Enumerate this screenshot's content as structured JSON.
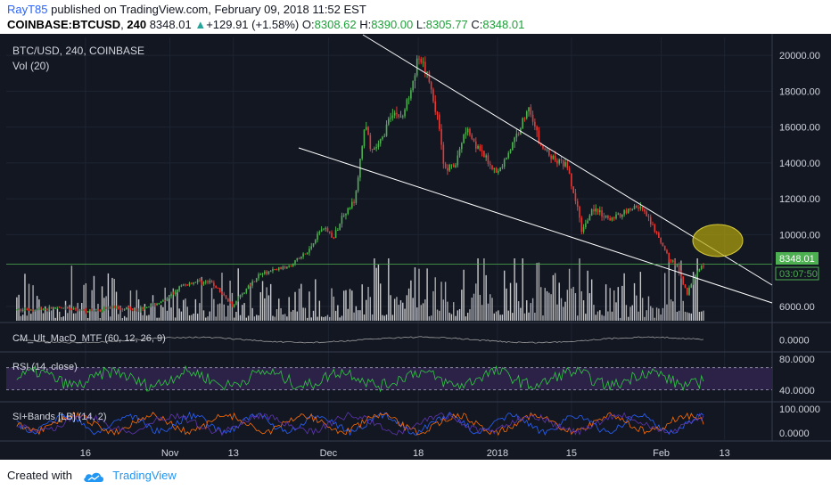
{
  "header": {
    "author": "RayT85",
    "published_text": "published on TradingView.com, February 09, 2018 11:52 EST",
    "symbol": "COINBASE:BTCUSD",
    "interval": "240",
    "last": "8348.01",
    "change": "+129.91 (+1.58%)",
    "o_label": "O:",
    "o_value": "8308.62",
    "h_label": "H:",
    "h_value": "8390.00",
    "l_label": "L:",
    "l_value": "8305.77",
    "c_label": "C:",
    "c_value": "8348.01"
  },
  "legend": {
    "main_title": "BTC/USD, 240, COINBASE",
    "vol_label": "Vol (20)",
    "macd_label": "CM_Ult_MacD_MTF (60, 12, 26, 9)",
    "rsi_label": "RSI (14, close)",
    "si_label": "SI+Bands [LB] (14, 2)"
  },
  "price_badges": {
    "last_price": "8348.01",
    "countdown": "03:07:50"
  },
  "footer": {
    "created_with": "Created with",
    "brand": "TradingView",
    "icon": "tradingview-cloud-icon"
  },
  "colors": {
    "background": "#131722",
    "up": "#26a69a",
    "down": "#ef5350",
    "candle_up": "#4caf50",
    "candle_down": "#e53935",
    "trendline": "#ffffff",
    "rsi_band": "#2c2247",
    "ellipse": "#b5a80b",
    "last_price": "#4caf50"
  },
  "chart_data": {
    "type": "candlestick",
    "title": "BTC/USD, 240, COINBASE",
    "price_axis": {
      "ticks": [
        "20000.00",
        "18000.00",
        "16000.00",
        "14000.00",
        "12000.00",
        "10000.00",
        "6000.00"
      ],
      "range": [
        5200,
        21000
      ]
    },
    "time_axis": {
      "ticks": [
        "16",
        "Nov",
        "13",
        "Dec",
        "18",
        "2018",
        "15",
        "Feb",
        "13"
      ]
    },
    "price_path": [
      [
        "Oct 2",
        5800
      ],
      [
        "Oct 10",
        5900
      ],
      [
        "Oct 16",
        5750
      ],
      [
        "Oct 20",
        5950
      ],
      [
        "Oct 25",
        5850
      ],
      [
        "Oct 30",
        6300
      ],
      [
        "Nov 2",
        7100
      ],
      [
        "Nov 5",
        7400
      ],
      [
        "Nov 8",
        7300
      ],
      [
        "Nov 12",
        6000
      ],
      [
        "Nov 13",
        6500
      ],
      [
        "Nov 17",
        7800
      ],
      [
        "Nov 22",
        8200
      ],
      [
        "Nov 26",
        9000
      ],
      [
        "Nov 29",
        10500
      ],
      [
        "Dec 1",
        9800
      ],
      [
        "Dec 3",
        11300
      ],
      [
        "Dec 5",
        11800
      ],
      [
        "Dec 7",
        16400
      ],
      [
        "Dec 8",
        14500
      ],
      [
        "Dec 10",
        15200
      ],
      [
        "Dec 12",
        16900
      ],
      [
        "Dec 14",
        16500
      ],
      [
        "Dec 17",
        19800
      ],
      [
        "Dec 19",
        18700
      ],
      [
        "Dec 21",
        16000
      ],
      [
        "Dec 22",
        13600
      ],
      [
        "Dec 24",
        13800
      ],
      [
        "Dec 26",
        16000
      ],
      [
        "Dec 29",
        14500
      ],
      [
        "Jan 1",
        13400
      ],
      [
        "Jan 4",
        15100
      ],
      [
        "Jan 7",
        17200
      ],
      [
        "Jan 9",
        15000
      ],
      [
        "Jan 12",
        14100
      ],
      [
        "Jan 14",
        13900
      ],
      [
        "Jan 16",
        11600
      ],
      [
        "Jan 17",
        10200
      ],
      [
        "Jan 19",
        11500
      ],
      [
        "Jan 22",
        10800
      ],
      [
        "Jan 25",
        11300
      ],
      [
        "Jan 28",
        11600
      ],
      [
        "Jan 31",
        10100
      ],
      [
        "Feb 2",
        8900
      ],
      [
        "Feb 4",
        8200
      ],
      [
        "Feb 6",
        6700
      ],
      [
        "Feb 7",
        7600
      ],
      [
        "Feb 8",
        8100
      ],
      [
        "Feb 9",
        8348
      ]
    ],
    "last_price": 8348.01,
    "indicators": [
      {
        "name": "CM_Ult_MacD_MTF (60, 12, 26, 9)",
        "ticks": [
          "0.0000"
        ]
      },
      {
        "name": "RSI (14, close)",
        "ticks": [
          "80.0000",
          "40.0000"
        ],
        "band": [
          30,
          70
        ]
      },
      {
        "name": "SI+Bands [LB] (14, 2)",
        "ticks": [
          "100.0000",
          "0.0000"
        ]
      }
    ]
  }
}
